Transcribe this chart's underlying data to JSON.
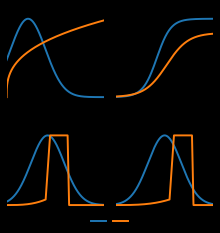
{
  "background_color": "#000000",
  "blue_color": "#1f77b4",
  "orange_color": "#ff7f0e",
  "line_width": 1.4,
  "fig_width": 2.2,
  "fig_height": 2.33
}
